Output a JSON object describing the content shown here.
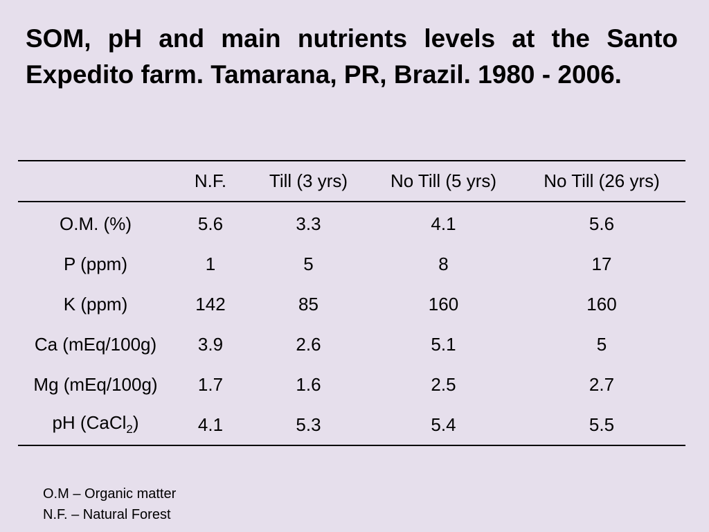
{
  "title": "SOM, pH and main nutrients levels at the Santo Expedito farm. Tamarana, PR, Brazil. 1980 - 2006.",
  "table": {
    "headers": [
      "",
      "N.F.",
      "Till (3 yrs)",
      "No Till (5 yrs)",
      "No Till (26 yrs)"
    ],
    "rows": [
      {
        "label": "O.M. (%)",
        "values": [
          "5.6",
          "3.3",
          "4.1",
          "5.6"
        ]
      },
      {
        "label": "P (ppm)",
        "values": [
          "1",
          "5",
          "8",
          "17"
        ]
      },
      {
        "label": "K (ppm)",
        "values": [
          "142",
          "85",
          "160",
          "160"
        ]
      },
      {
        "label": "Ca (mEq/100g)",
        "values": [
          "3.9",
          "2.6",
          "5.1",
          "5"
        ]
      },
      {
        "label": "Mg (mEq/100g)",
        "values": [
          "1.7",
          "1.6",
          "2.5",
          "2.7"
        ]
      },
      {
        "label": "pH (CaCl",
        "label_sub": "2",
        "label_suffix": ")",
        "values": [
          "4.1",
          "5.3",
          "5.4",
          "5.5"
        ]
      }
    ]
  },
  "footnotes": [
    "O.M – Organic matter",
    "N.F. – Natural Forest"
  ]
}
